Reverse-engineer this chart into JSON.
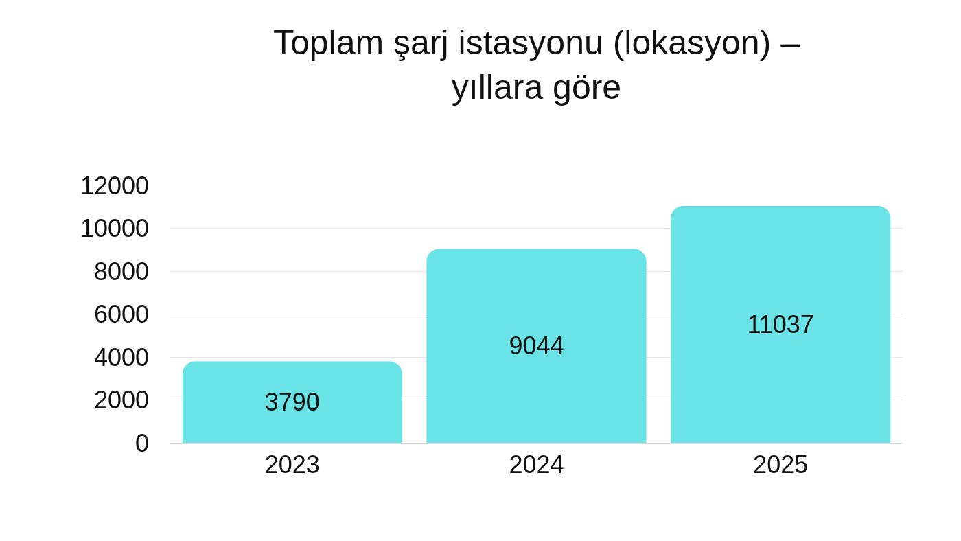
{
  "chart_data": {
    "type": "bar",
    "title": "Toplam şarj istasyonu (lokasyon) –\nyıllara göre",
    "categories": [
      "2023",
      "2024",
      "2025"
    ],
    "values": [
      3790,
      9044,
      11037
    ],
    "color": "#6ae3e6",
    "ylim": [
      0,
      12000
    ],
    "yticks": [
      0,
      2000,
      4000,
      6000,
      8000,
      10000,
      12000
    ],
    "grid": "y",
    "data_labels": true,
    "legend": false
  }
}
